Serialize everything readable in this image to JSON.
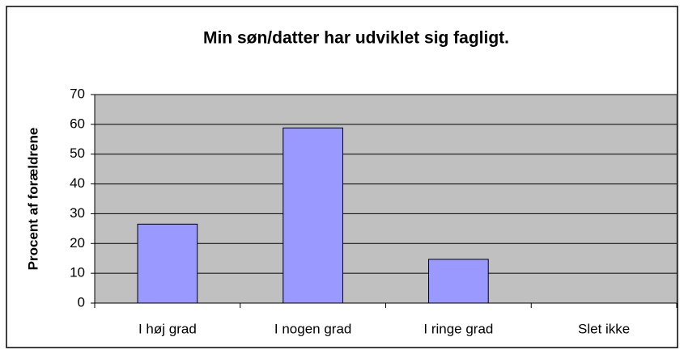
{
  "chart_data": {
    "type": "bar",
    "title": "Min søn/datter har udviklet sig fagligt.",
    "y_label": "Procent af forældrene",
    "categories": [
      "I høj grad",
      "I nogen grad",
      "I ringe grad",
      "Slet ikke"
    ],
    "values": [
      26.5,
      58.8,
      14.7,
      0
    ],
    "color": "#9999ff",
    "ylim": [
      0,
      70
    ],
    "yticks": [
      0,
      10,
      20,
      30,
      40,
      50,
      60,
      70
    ],
    "grid": true
  }
}
